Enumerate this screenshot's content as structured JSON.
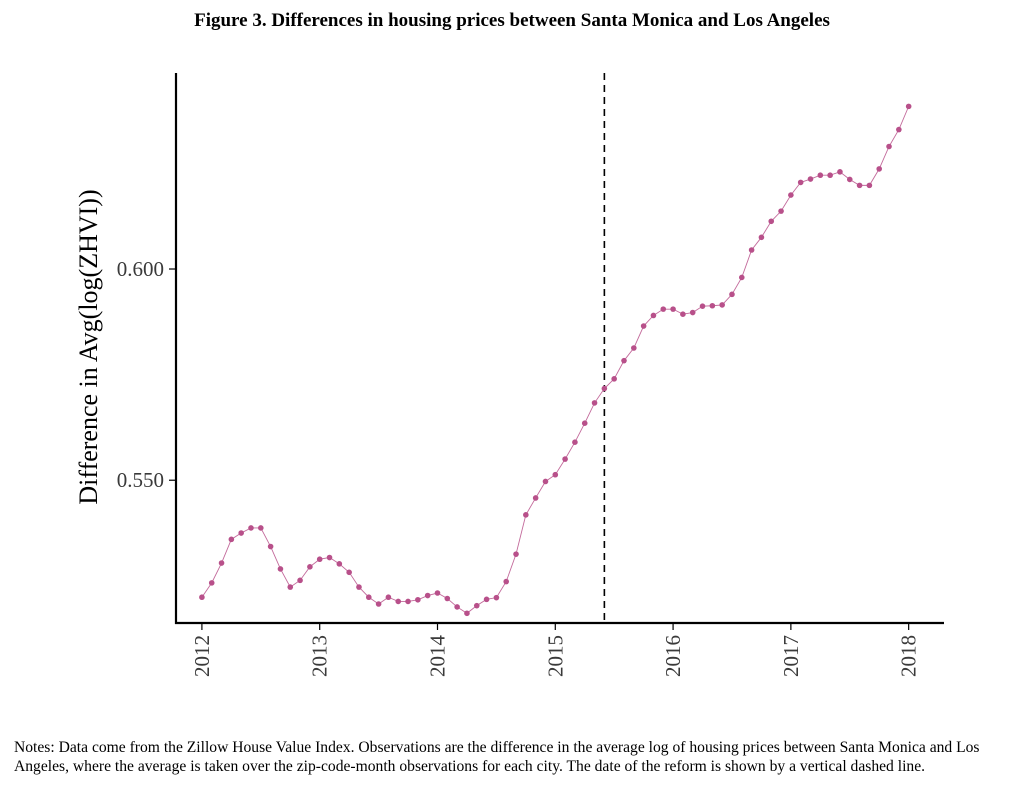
{
  "figure": {
    "title": "Figure 3. Differences in housing prices between Santa Monica and Los Angeles",
    "notes": "Notes: Data come from the Zillow House Value Index. Observations are the difference in the average log of housing prices between Santa Monica and Los Angeles, where the average is taken over the zip-code-month observations for each city. The date of the reform is shown by a vertical dashed line."
  },
  "chart_data": {
    "type": "line",
    "title": "",
    "xlabel": "",
    "ylabel": "Difference in Avg(log(ZHVI))",
    "xlim": [
      2011.78,
      2018.3
    ],
    "ylim": [
      0.5162,
      0.6464
    ],
    "x_ticks": [
      "2012",
      "2013",
      "2014",
      "2015",
      "2016",
      "2017",
      "2018"
    ],
    "y_ticks": [
      "0.550",
      "0.600"
    ],
    "reference_line": {
      "x": 2015.4167,
      "style": "dashed"
    },
    "grid": false,
    "series_color": "#b8508a",
    "series": [
      {
        "name": "",
        "x": [
          2012.0,
          2012.0833,
          2012.1667,
          2012.25,
          2012.3333,
          2012.4167,
          2012.5,
          2012.5833,
          2012.6667,
          2012.75,
          2012.8333,
          2012.9167,
          2013.0,
          2013.0833,
          2013.1667,
          2013.25,
          2013.3333,
          2013.4167,
          2013.5,
          2013.5833,
          2013.6667,
          2013.75,
          2013.8333,
          2013.9167,
          2014.0,
          2014.0833,
          2014.1667,
          2014.25,
          2014.3333,
          2014.4167,
          2014.5,
          2014.5833,
          2014.6667,
          2014.75,
          2014.8333,
          2014.9167,
          2015.0,
          2015.0833,
          2015.1667,
          2015.25,
          2015.3333,
          2015.4167,
          2015.5,
          2015.5833,
          2015.6667,
          2015.75,
          2015.8333,
          2015.9167,
          2016.0,
          2016.0833,
          2016.1667,
          2016.25,
          2016.3333,
          2016.4167,
          2016.5,
          2016.5833,
          2016.6667,
          2016.75,
          2016.8333,
          2016.9167,
          2017.0,
          2017.0833,
          2017.1667,
          2017.25,
          2017.3333,
          2017.4167,
          2017.5,
          2017.5833,
          2017.6667,
          2017.75,
          2017.8333,
          2017.9167,
          2018.0
        ],
        "y": [
          0.5223,
          0.5257,
          0.5304,
          0.536,
          0.5375,
          0.5387,
          0.5387,
          0.5343,
          0.529,
          0.5247,
          0.5263,
          0.5295,
          0.5313,
          0.5317,
          0.5302,
          0.5282,
          0.5247,
          0.5223,
          0.5207,
          0.5223,
          0.5213,
          0.5213,
          0.5217,
          0.5227,
          0.5233,
          0.522,
          0.52,
          0.5185,
          0.5203,
          0.5218,
          0.5222,
          0.526,
          0.5325,
          0.5418,
          0.5458,
          0.5497,
          0.5513,
          0.555,
          0.559,
          0.5635,
          0.5683,
          0.5717,
          0.574,
          0.5783,
          0.5813,
          0.5865,
          0.589,
          0.5905,
          0.5905,
          0.5893,
          0.5897,
          0.5912,
          0.5913,
          0.5915,
          0.594,
          0.598,
          0.6045,
          0.6075,
          0.6113,
          0.6137,
          0.6175,
          0.6205,
          0.6213,
          0.6222,
          0.6222,
          0.623,
          0.6212,
          0.6198,
          0.6198,
          0.6237,
          0.629,
          0.633,
          0.6385
        ]
      }
    ]
  }
}
